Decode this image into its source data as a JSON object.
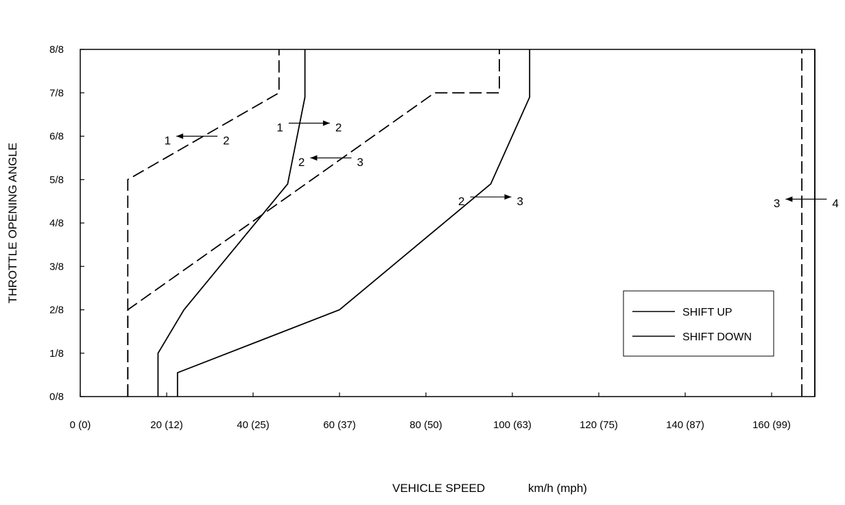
{
  "chart_data": {
    "type": "line",
    "title": "",
    "xlabel": "VEHICLE SPEED",
    "xunit": "km/h (mph)",
    "ylabel": "THROTTLE OPENING ANGLE",
    "xlim": [
      0,
      170
    ],
    "ylim": [
      0,
      8
    ],
    "x_ticks": [
      {
        "value": 0,
        "label": "0 (0)"
      },
      {
        "value": 20,
        "label": "20 (12)"
      },
      {
        "value": 40,
        "label": "40 (25)"
      },
      {
        "value": 60,
        "label": "60 (37)"
      },
      {
        "value": 80,
        "label": "80 (50)"
      },
      {
        "value": 100,
        "label": "100 (63)"
      },
      {
        "value": 120,
        "label": "120 (75)"
      },
      {
        "value": 140,
        "label": "140 (87)"
      },
      {
        "value": 160,
        "label": "160 (99)"
      }
    ],
    "y_ticks": [
      {
        "value": 0,
        "label": "0/8"
      },
      {
        "value": 1,
        "label": "1/8"
      },
      {
        "value": 2,
        "label": "2/8"
      },
      {
        "value": 3,
        "label": "3/8"
      },
      {
        "value": 4,
        "label": "4/8"
      },
      {
        "value": 5,
        "label": "5/8"
      },
      {
        "value": 6,
        "label": "6/8"
      },
      {
        "value": 7,
        "label": "7/8"
      },
      {
        "value": 8,
        "label": "8/8"
      }
    ],
    "grid": false,
    "legend": {
      "placement": "bottom-right",
      "entries": [
        {
          "label": "SHIFT UP",
          "style": "solid"
        },
        {
          "label": "SHIFT DOWN",
          "style": "solid"
        }
      ]
    },
    "series": [
      {
        "style": "solid",
        "x": [
          18,
          18,
          24,
          48,
          52,
          52
        ],
        "y": [
          0,
          1,
          2,
          4.9,
          6.9,
          8
        ]
      },
      {
        "style": "solid",
        "x": [
          22.5,
          22.5,
          60,
          95,
          104,
          104
        ],
        "y": [
          0,
          0.55,
          2,
          4.9,
          6.9,
          8
        ]
      },
      {
        "style": "solid",
        "x": [
          170,
          170
        ],
        "y": [
          0,
          8
        ]
      },
      {
        "style": "dashed",
        "x": [
          11,
          11,
          46,
          46
        ],
        "y": [
          0,
          5,
          7,
          8
        ]
      },
      {
        "style": "dashed",
        "x": [
          11,
          11,
          82,
          97,
          97
        ],
        "y": [
          0,
          2,
          7,
          7,
          8
        ]
      },
      {
        "style": "dashed",
        "x": [
          167,
          167
        ],
        "y": [
          0,
          8
        ]
      }
    ],
    "annotations": [
      {
        "from": "1",
        "to": "2",
        "direction": "left",
        "x": 27,
        "y": 6.0
      },
      {
        "from": "1",
        "to": "2",
        "direction": "right",
        "x": 53,
        "y": 6.3
      },
      {
        "from": "2",
        "to": "3",
        "direction": "left",
        "x": 58,
        "y": 5.5
      },
      {
        "from": "2",
        "to": "3",
        "direction": "right",
        "x": 95,
        "y": 4.6
      },
      {
        "from": "3",
        "to": "4",
        "direction": "left",
        "x": 168,
        "y": 4.55
      }
    ]
  }
}
